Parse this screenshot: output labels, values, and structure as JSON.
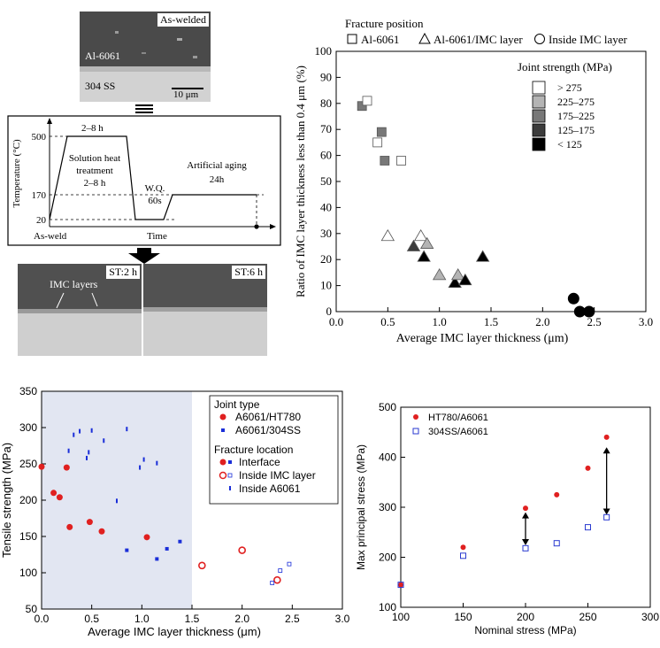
{
  "micrographs": {
    "aswelded": {
      "tag": "As-welded",
      "top_label": "Al-6061",
      "bottom_label": "304 SS",
      "scale": "10 μm"
    },
    "st2": {
      "tag": "ST:2 h",
      "annotation": "IMC layers"
    },
    "st6": {
      "tag": "ST:6 h"
    }
  },
  "heat_treatment": {
    "ylabel": "Temperature (°C)",
    "xlabel": "Time",
    "y_ticks": [
      "500",
      "170",
      "20"
    ],
    "start_label": "As-weld",
    "hold_top": "2–8 h",
    "solution_line1": "Solution heat",
    "solution_line2": "treatment",
    "solution_line3": "2–8 h",
    "wq_line1": "W.Q.",
    "wq_line2": "60s",
    "aging_line1": "Artificial aging",
    "aging_line2": "24h"
  },
  "chart_data": [
    {
      "type": "scatter",
      "id": "ratio-vs-thickness",
      "title": "",
      "xlabel": "Average IMC layer thickness (μm)",
      "ylabel": "Ratio of IMC layer thickness less than 0.4 μm (%)",
      "xlim": [
        0,
        3.0
      ],
      "ylim": [
        0,
        100
      ],
      "x_ticks": [
        "0.0",
        "0.5",
        "1.0",
        "1.5",
        "2.0",
        "2.5",
        "3.0"
      ],
      "y_ticks": [
        "0",
        "10",
        "20",
        "30",
        "40",
        "50",
        "60",
        "70",
        "80",
        "90",
        "100"
      ],
      "legend_title": "Fracture position",
      "legend_shapes": [
        {
          "shape": "square",
          "label": "Al-6061"
        },
        {
          "shape": "triangle",
          "label": "Al-6061/IMC layer"
        },
        {
          "shape": "circle",
          "label": "Inside IMC layer"
        }
      ],
      "strength_title": "Joint strength (MPa)",
      "strength_bins": [
        {
          "label": "> 275",
          "color": "#ffffff"
        },
        {
          "label": "225–275",
          "color": "#b4b4b4"
        },
        {
          "label": "175–225",
          "color": "#787878"
        },
        {
          "label": "125–175",
          "color": "#3c3c3c"
        },
        {
          "label": "< 125",
          "color": "#000000"
        }
      ],
      "points": [
        {
          "x": 0.25,
          "y": 79,
          "shape": "square",
          "color": "#787878"
        },
        {
          "x": 0.3,
          "y": 81,
          "shape": "square",
          "color": "#ffffff"
        },
        {
          "x": 0.4,
          "y": 65,
          "shape": "square",
          "color": "#ffffff"
        },
        {
          "x": 0.44,
          "y": 69,
          "shape": "square",
          "color": "#787878"
        },
        {
          "x": 0.47,
          "y": 58,
          "shape": "square",
          "color": "#787878"
        },
        {
          "x": 0.63,
          "y": 58,
          "shape": "square",
          "color": "#ffffff"
        },
        {
          "x": 0.5,
          "y": 29,
          "shape": "triangle",
          "color": "#ffffff"
        },
        {
          "x": 0.82,
          "y": 29,
          "shape": "triangle",
          "color": "#ffffff"
        },
        {
          "x": 0.75,
          "y": 25,
          "shape": "triangle",
          "color": "#3c3c3c"
        },
        {
          "x": 0.88,
          "y": 26,
          "shape": "triangle",
          "color": "#b4b4b4"
        },
        {
          "x": 0.85,
          "y": 21,
          "shape": "triangle",
          "color": "#000000"
        },
        {
          "x": 1.0,
          "y": 14,
          "shape": "triangle",
          "color": "#b4b4b4"
        },
        {
          "x": 1.15,
          "y": 11,
          "shape": "triangle",
          "color": "#000000"
        },
        {
          "x": 1.18,
          "y": 14,
          "shape": "triangle",
          "color": "#b4b4b4"
        },
        {
          "x": 1.25,
          "y": 12,
          "shape": "triangle",
          "color": "#000000"
        },
        {
          "x": 1.42,
          "y": 21,
          "shape": "triangle",
          "color": "#000000"
        },
        {
          "x": 2.3,
          "y": 5,
          "shape": "circle",
          "color": "#000000"
        },
        {
          "x": 2.36,
          "y": 0,
          "shape": "circle",
          "color": "#000000"
        },
        {
          "x": 2.45,
          "y": 0,
          "shape": "circle",
          "color": "#000000"
        }
      ]
    },
    {
      "type": "scatter",
      "id": "tensile-vs-thickness",
      "title": "",
      "xlabel": "Average IMC layer thickness (μm)",
      "ylabel": "Tensile strength (MPa)",
      "xlim": [
        0,
        3.0
      ],
      "ylim": [
        50,
        350
      ],
      "x_ticks": [
        "0.0",
        "0.5",
        "1.0",
        "1.5",
        "2.0",
        "2.5",
        "3.0"
      ],
      "y_ticks": [
        "50",
        "100",
        "150",
        "200",
        "250",
        "300",
        "350"
      ],
      "shaded_region": [
        0,
        1.5
      ],
      "legend_title_joint": "Joint type",
      "legend_joint": [
        {
          "label": "A6061/HT780",
          "color": "#e02020",
          "marker": "circle"
        },
        {
          "label": "A6061/304SS",
          "color": "#1a2ed8",
          "marker": "square"
        }
      ],
      "legend_title_fracture": "Fracture location",
      "legend_fracture": [
        {
          "label": "Interface",
          "marker": "filled"
        },
        {
          "label": "Inside IMC layer",
          "marker": "open"
        },
        {
          "label": "Inside A6061",
          "marker": "bar"
        }
      ],
      "series": [
        {
          "name": "A6061/HT780 Interface",
          "color": "#e02020",
          "marker": "filled-circle",
          "points": [
            [
              0.0,
              246
            ],
            [
              0.12,
              210
            ],
            [
              0.18,
              204
            ],
            [
              0.25,
              245
            ],
            [
              0.28,
              163
            ],
            [
              0.48,
              170
            ],
            [
              0.6,
              157
            ],
            [
              1.05,
              149
            ]
          ]
        },
        {
          "name": "A6061/HT780 Inside IMC layer",
          "color": "#e02020",
          "marker": "open-circle",
          "points": [
            [
              1.6,
              110
            ],
            [
              2.0,
              131
            ],
            [
              2.35,
              90
            ]
          ]
        },
        {
          "name": "A6061/304SS Interface",
          "color": "#1a2ed8",
          "marker": "filled-square",
          "points": [
            [
              0.85,
              131
            ],
            [
              1.15,
              119
            ],
            [
              1.25,
              133
            ],
            [
              1.38,
              143
            ]
          ]
        },
        {
          "name": "A6061/304SS Inside IMC layer",
          "color": "#1a2ed8",
          "marker": "open-square",
          "points": [
            [
              2.3,
              86
            ],
            [
              2.38,
              103
            ],
            [
              2.47,
              112
            ]
          ]
        },
        {
          "name": "A6061/304SS Inside A6061",
          "color": "#1a2ed8",
          "marker": "bar",
          "points": [
            [
              0.27,
              268
            ],
            [
              0.32,
              290
            ],
            [
              0.38,
              295
            ],
            [
              0.45,
              258
            ],
            [
              0.47,
              266
            ],
            [
              0.5,
              296
            ],
            [
              0.62,
              282
            ],
            [
              0.75,
              199
            ],
            [
              0.85,
              298
            ],
            [
              0.98,
              245
            ],
            [
              1.02,
              256
            ],
            [
              1.15,
              251
            ]
          ]
        }
      ]
    },
    {
      "type": "scatter",
      "id": "principal-vs-nominal",
      "title": "",
      "xlabel": "Nominal stress (MPa)",
      "ylabel": "Max principal stress (MPa)",
      "xlim": [
        100,
        300
      ],
      "ylim": [
        100,
        500
      ],
      "x_ticks": [
        "100",
        "150",
        "200",
        "250",
        "300"
      ],
      "y_ticks": [
        "100",
        "200",
        "300",
        "400",
        "500"
      ],
      "series": [
        {
          "name": "HT780/A6061",
          "color": "#e02020",
          "marker": "filled-circle",
          "points": [
            [
              100,
              145
            ],
            [
              150,
              220
            ],
            [
              200,
              298
            ],
            [
              225,
              325
            ],
            [
              250,
              378
            ],
            [
              265,
              440
            ]
          ]
        },
        {
          "name": "304SS/A6061",
          "color": "#2a3ad0",
          "marker": "open-square",
          "points": [
            [
              100,
              145
            ],
            [
              150,
              203
            ],
            [
              200,
              218
            ],
            [
              225,
              228
            ],
            [
              250,
              260
            ],
            [
              265,
              280
            ]
          ]
        }
      ],
      "arrows": [
        [
          200,
          290,
          224
        ],
        [
          265,
          420,
          285
        ]
      ]
    }
  ]
}
